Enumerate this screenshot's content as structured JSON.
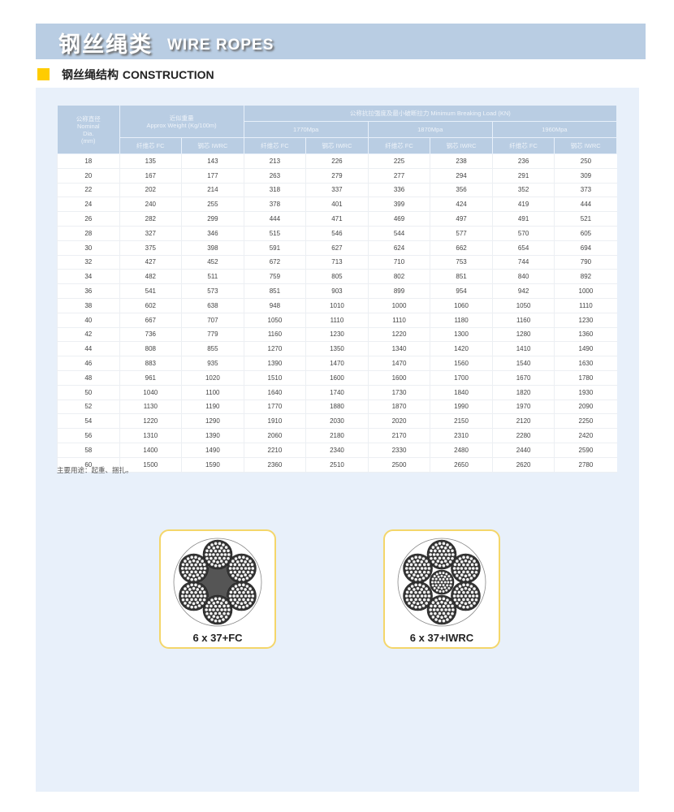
{
  "banner": {
    "title_cn": "钢丝绳类",
    "title_en": "WIRE ROPES"
  },
  "section": {
    "title_cn": "钢丝绳结构",
    "title_en": "CONSTRUCTION",
    "marker_color": "#ffcc00"
  },
  "table": {
    "header": {
      "nominal": [
        "公称直径",
        "Nominal",
        "Dia.",
        "(mm)"
      ],
      "weight": [
        "近似重量",
        "Approx Weight (Kg/100m)"
      ],
      "mbl": "公称抗拉强度及最小破断拉力 Minimum Breaking Load (KN)",
      "grades": [
        "1770Mpa",
        "1870Mpa",
        "1960Mpa"
      ],
      "fc": "纤维芯 FC",
      "iwrc": "钢芯 IWRC"
    },
    "rows": [
      [
        "18",
        "135",
        "143",
        "213",
        "226",
        "225",
        "238",
        "236",
        "250"
      ],
      [
        "20",
        "167",
        "177",
        "263",
        "279",
        "277",
        "294",
        "291",
        "309"
      ],
      [
        "22",
        "202",
        "214",
        "318",
        "337",
        "336",
        "356",
        "352",
        "373"
      ],
      [
        "24",
        "240",
        "255",
        "378",
        "401",
        "399",
        "424",
        "419",
        "444"
      ],
      [
        "26",
        "282",
        "299",
        "444",
        "471",
        "469",
        "497",
        "491",
        "521"
      ],
      [
        "28",
        "327",
        "346",
        "515",
        "546",
        "544",
        "577",
        "570",
        "605"
      ],
      [
        "30",
        "375",
        "398",
        "591",
        "627",
        "624",
        "662",
        "654",
        "694"
      ],
      [
        "32",
        "427",
        "452",
        "672",
        "713",
        "710",
        "753",
        "744",
        "790"
      ],
      [
        "34",
        "482",
        "511",
        "759",
        "805",
        "802",
        "851",
        "840",
        "892"
      ],
      [
        "36",
        "541",
        "573",
        "851",
        "903",
        "899",
        "954",
        "942",
        "1000"
      ],
      [
        "38",
        "602",
        "638",
        "948",
        "1010",
        "1000",
        "1060",
        "1050",
        "1110"
      ],
      [
        "40",
        "667",
        "707",
        "1050",
        "1110",
        "1110",
        "1180",
        "1160",
        "1230"
      ],
      [
        "42",
        "736",
        "779",
        "1160",
        "1230",
        "1220",
        "1300",
        "1280",
        "1360"
      ],
      [
        "44",
        "808",
        "855",
        "1270",
        "1350",
        "1340",
        "1420",
        "1410",
        "1490"
      ],
      [
        "46",
        "883",
        "935",
        "1390",
        "1470",
        "1470",
        "1560",
        "1540",
        "1630"
      ],
      [
        "48",
        "961",
        "1020",
        "1510",
        "1600",
        "1600",
        "1700",
        "1670",
        "1780"
      ],
      [
        "50",
        "1040",
        "1100",
        "1640",
        "1740",
        "1730",
        "1840",
        "1820",
        "1930"
      ],
      [
        "52",
        "1130",
        "1190",
        "1770",
        "1880",
        "1870",
        "1990",
        "1970",
        "2090"
      ],
      [
        "54",
        "1220",
        "1290",
        "1910",
        "2030",
        "2020",
        "2150",
        "2120",
        "2250"
      ],
      [
        "56",
        "1310",
        "1390",
        "2060",
        "2180",
        "2170",
        "2310",
        "2280",
        "2420"
      ],
      [
        "58",
        "1400",
        "1490",
        "2210",
        "2340",
        "2330",
        "2480",
        "2440",
        "2590"
      ],
      [
        "60",
        "1500",
        "1590",
        "2360",
        "2510",
        "2500",
        "2650",
        "2620",
        "2780"
      ]
    ]
  },
  "note": "主要用途：起重、捆扎。",
  "diagrams": [
    {
      "label": "6 x 37+FC",
      "core": "fiber"
    },
    {
      "label": "6 x 37+IWRC",
      "core": "steel"
    }
  ]
}
